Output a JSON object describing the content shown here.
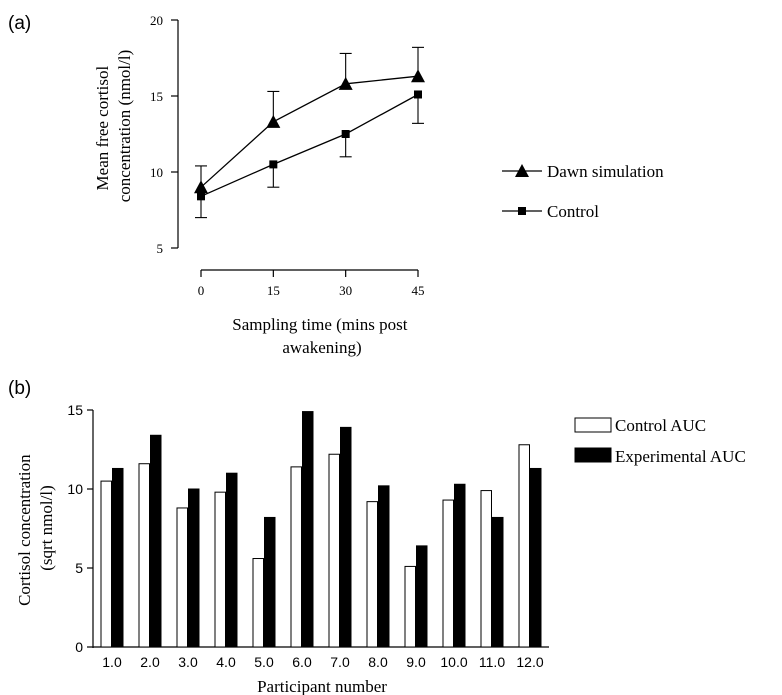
{
  "chart_data": [
    {
      "panel_label": "(a)",
      "type": "line",
      "xlabel_lines": [
        "Sampling time (mins post",
        "awakening)"
      ],
      "ylabel_lines": [
        "Mean free cortisol",
        "concentration (nmol/l)"
      ],
      "x": [
        0,
        15,
        30,
        45
      ],
      "x_ticks": [
        "0",
        "15",
        "30",
        "45"
      ],
      "y_ticks": [
        "5",
        "10",
        "15",
        "20"
      ],
      "ylim": [
        5,
        20
      ],
      "grid": false,
      "legend_position": "right",
      "series": [
        {
          "name": "Dawn simulation",
          "marker": "triangle",
          "values": [
            9.0,
            13.3,
            15.8,
            16.3
          ],
          "error_upper": [
            10.4,
            15.3,
            17.8,
            18.2
          ],
          "error_lower": [
            null,
            null,
            null,
            null
          ]
        },
        {
          "name": "Control",
          "marker": "square",
          "values": [
            8.4,
            10.5,
            12.5,
            15.1
          ],
          "error_upper": [
            null,
            null,
            null,
            null
          ],
          "error_lower": [
            7.0,
            9.0,
            11.0,
            13.2
          ]
        }
      ]
    },
    {
      "panel_label": "(b)",
      "type": "bar",
      "xlabel": "Participant number",
      "ylabel_lines": [
        "Cortisol concentration",
        "(sqrt nmol/l)"
      ],
      "categories": [
        "1.0",
        "2.0",
        "3.0",
        "4.0",
        "5.0",
        "6.0",
        "7.0",
        "8.0",
        "9.0",
        "10.0",
        "11.0",
        "12.0"
      ],
      "y_ticks": [
        "0",
        "5",
        "10",
        "15"
      ],
      "ylim": [
        0,
        15
      ],
      "grid": false,
      "legend_position": "top-right",
      "series": [
        {
          "name": "Control AUC",
          "color": "#ffffff",
          "values": [
            10.5,
            11.6,
            8.8,
            9.8,
            5.6,
            11.4,
            12.2,
            9.2,
            5.1,
            9.3,
            9.9,
            12.8
          ]
        },
        {
          "name": "Experimental AUC",
          "color": "#000000",
          "values": [
            11.3,
            13.4,
            10.0,
            11.0,
            8.2,
            14.9,
            13.9,
            10.2,
            6.4,
            10.3,
            8.2,
            11.3
          ]
        }
      ]
    }
  ]
}
